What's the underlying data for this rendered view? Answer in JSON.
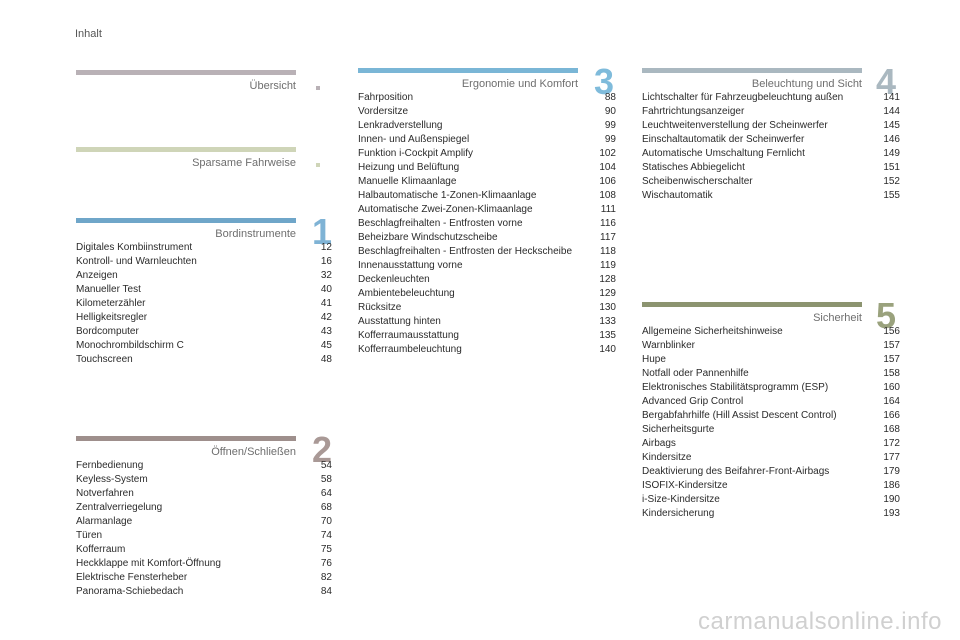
{
  "header": {
    "label": "Inhalt"
  },
  "sections": [
    {
      "id": "uebersicht",
      "title": "Übersicht",
      "number": "",
      "bar_color": "#b9b1b6",
      "accent": "#b9b1b6",
      "entries": []
    },
    {
      "id": "sparsame",
      "title": "Sparsame Fahrweise",
      "number": "",
      "bar_color": "#cfd5b8",
      "accent": "#cfd5b8",
      "entries": []
    },
    {
      "id": "bordinstrumente",
      "title": "Bordinstrumente",
      "number": "1",
      "bar_color": "#6fa6c9",
      "accent": "#7fb3d5",
      "entries": [
        {
          "label": "Digitales Kombiinstrument",
          "page": "12"
        },
        {
          "label": "Kontroll- und Warnleuchten",
          "page": "16"
        },
        {
          "label": "Anzeigen",
          "page": "32"
        },
        {
          "label": "Manueller Test",
          "page": "40"
        },
        {
          "label": "Kilometerzähler",
          "page": "41"
        },
        {
          "label": "Helligkeitsregler",
          "page": "42"
        },
        {
          "label": "Bordcomputer",
          "page": "43"
        },
        {
          "label": "Monochrombildschirm C",
          "page": "45"
        },
        {
          "label": "Touchscreen",
          "page": "48"
        }
      ]
    },
    {
      "id": "oeffnen",
      "title": "Öffnen/Schließen",
      "number": "2",
      "bar_color": "#9e8f8c",
      "accent": "#a99996",
      "entries": [
        {
          "label": "Fernbedienung",
          "page": "54"
        },
        {
          "label": "Keyless-System",
          "page": "58"
        },
        {
          "label": "Notverfahren",
          "page": "64"
        },
        {
          "label": "Zentralverriegelung",
          "page": "68"
        },
        {
          "label": "Alarmanlage",
          "page": "70"
        },
        {
          "label": "Türen",
          "page": "74"
        },
        {
          "label": "Kofferraum",
          "page": "75"
        },
        {
          "label": "Heckklappe mit Komfort-Öffnung",
          "page": "76"
        },
        {
          "label": "Elektrische Fensterheber",
          "page": "82"
        },
        {
          "label": "Panorama-Schiebedach",
          "page": "84"
        }
      ]
    },
    {
      "id": "ergonomie",
      "title": "Ergonomie und Komfort",
      "number": "3",
      "bar_color": "#7ab6d6",
      "accent": "#7fbbdb",
      "entries": [
        {
          "label": "Fahrposition",
          "page": "88"
        },
        {
          "label": "Vordersitze",
          "page": "90"
        },
        {
          "label": "Lenkradverstellung",
          "page": "99"
        },
        {
          "label": "Innen- und Außenspiegel",
          "page": "99"
        },
        {
          "label": "Funktion i-Cockpit Amplify",
          "page": "102"
        },
        {
          "label": "Heizung und Belüftung",
          "page": "104"
        },
        {
          "label": "Manuelle Klimaanlage",
          "page": "106"
        },
        {
          "label": "Halbautomatische 1-Zonen-Klimaanlage",
          "page": "108"
        },
        {
          "label": "Automatische Zwei-Zonen-Klimaanlage",
          "page": "111"
        },
        {
          "label": "Beschlagfreihalten - Entfrosten vorne",
          "page": "116"
        },
        {
          "label": "Beheizbare Windschutzscheibe",
          "page": "117"
        },
        {
          "label": "Beschlagfreihalten - Entfrosten der Heckscheibe",
          "page": "118"
        },
        {
          "label": "Innenausstattung vorne",
          "page": "119"
        },
        {
          "label": "Deckenleuchten",
          "page": "128"
        },
        {
          "label": "Ambientebeleuchtung",
          "page": "129"
        },
        {
          "label": "Rücksitze",
          "page": "130"
        },
        {
          "label": "Ausstattung hinten",
          "page": "133"
        },
        {
          "label": "Kofferraumausstattung",
          "page": "135"
        },
        {
          "label": "Kofferraumbeleuchtung",
          "page": "140"
        }
      ]
    },
    {
      "id": "beleuchtung",
      "title": "Beleuchtung und Sicht",
      "number": "4",
      "bar_color": "#aab8c0",
      "accent": "#aab8c0",
      "entries": [
        {
          "label": "Lichtschalter für Fahrzeugbeleuchtung außen",
          "page": "141"
        },
        {
          "label": "Fahrtrichtungsanzeiger",
          "page": "144"
        },
        {
          "label": "Leuchtweitenverstellung der Scheinwerfer",
          "page": "145"
        },
        {
          "label": "Einschaltautomatik der Scheinwerfer",
          "page": "146"
        },
        {
          "label": "Automatische Umschaltung Fernlicht",
          "page": "149"
        },
        {
          "label": "Statisches Abbiegelicht",
          "page": "151"
        },
        {
          "label": "Scheibenwischerschalter",
          "page": "152"
        },
        {
          "label": "Wischautomatik",
          "page": "155"
        }
      ]
    },
    {
      "id": "sicherheit",
      "title": "Sicherheit",
      "number": "5",
      "bar_color": "#8c9470",
      "accent": "#9aa27d",
      "entries": [
        {
          "label": "Allgemeine Sicherheitshinweise",
          "page": "156"
        },
        {
          "label": "Warnblinker",
          "page": "157"
        },
        {
          "label": "Hupe",
          "page": "157"
        },
        {
          "label": "Notfall oder Pannenhilfe",
          "page": "158"
        },
        {
          "label": "Elektronisches Stabilitätsprogramm (ESP)",
          "page": "160"
        },
        {
          "label": "Advanced Grip Control",
          "page": "164"
        },
        {
          "label": "Bergabfahrhilfe (Hill Assist Descent Control)",
          "page": "166"
        },
        {
          "label": "Sicherheitsgurte",
          "page": "168"
        },
        {
          "label": "Airbags",
          "page": "172"
        },
        {
          "label": "Kindersitze",
          "page": "177"
        },
        {
          "label": "Deaktivierung des Beifahrer-Front-Airbags",
          "page": "179"
        },
        {
          "label": "ISOFIX-Kindersitze",
          "page": "186"
        },
        {
          "label": "i-Size-Kindersitze",
          "page": "190"
        },
        {
          "label": "Kindersicherung",
          "page": "193"
        }
      ]
    }
  ],
  "watermark": "carmanualsonline.info"
}
